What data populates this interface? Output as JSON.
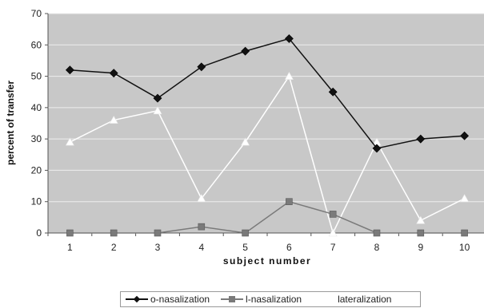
{
  "chart_data": {
    "type": "line",
    "title": "",
    "xlabel": "subject number",
    "ylabel": "percent of transfer",
    "x": [
      1,
      2,
      3,
      4,
      5,
      6,
      7,
      8,
      9,
      10
    ],
    "ylim": [
      0,
      70
    ],
    "yticks": [
      0,
      10,
      20,
      30,
      40,
      50,
      60,
      70
    ],
    "grid": true,
    "legend_position": "bottom",
    "plot_background": "#c8c8c8",
    "series": [
      {
        "name": "o-nasalization",
        "values": [
          52,
          51,
          43,
          53,
          58,
          62,
          45,
          27,
          30,
          31
        ],
        "color": "#111111",
        "marker": "diamond"
      },
      {
        "name": "l-nasalization",
        "values": [
          0,
          0,
          0,
          2,
          0,
          10,
          6,
          0,
          0,
          0
        ],
        "color": "#7a7a7a",
        "marker": "square"
      },
      {
        "name": "lateralization",
        "values": [
          29,
          36,
          39,
          11,
          29,
          50,
          0,
          29,
          4,
          11
        ],
        "color": "#ffffff",
        "marker": "triangle"
      }
    ]
  }
}
